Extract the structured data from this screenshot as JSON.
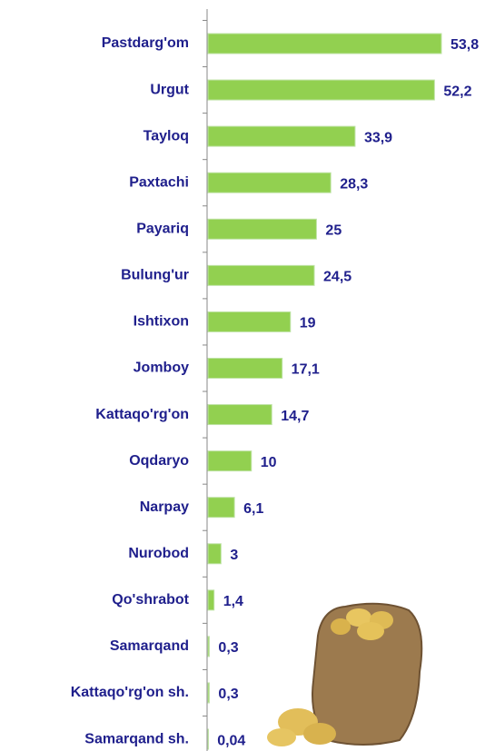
{
  "chart_data": {
    "type": "barh",
    "categories": [
      "Pastdarg'om",
      "Urgut",
      "Tayloq",
      "Paxtachi",
      "Payariq",
      "Bulung'ur",
      "Ishtixon",
      "Jomboy",
      "Kattaqo'rg'on",
      "Oqdaryo",
      "Narpay",
      "Nurobod",
      "Qo'shrabot",
      "Samarqand",
      "Kattaqo'rg'on sh.",
      "Samarqand sh."
    ],
    "values": [
      53.8,
      52.2,
      33.9,
      28.3,
      25,
      24.5,
      19,
      17.1,
      14.7,
      10,
      6.1,
      3,
      1.4,
      0.3,
      0.3,
      0.04
    ],
    "value_labels": [
      "53,8",
      "52,2",
      "33,9",
      "28,3",
      "25",
      "24,5",
      "19",
      "17,1",
      "14,7",
      "10",
      "6,1",
      "3",
      "1,4",
      "0,3",
      "0,3",
      "0,04"
    ],
    "color": "#92d050"
  }
}
